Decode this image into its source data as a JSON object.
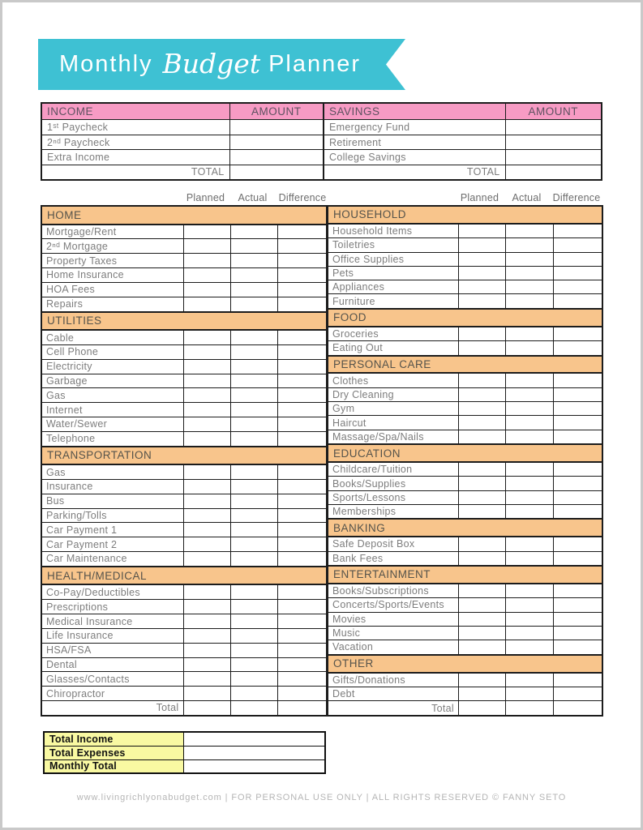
{
  "title": {
    "monthly": "Monthly",
    "budget": "Budget",
    "planner": "Planner"
  },
  "colors": {
    "banner_teal": "#3ec1d3",
    "header_pink": "#f79bc4",
    "section_orange": "#f8c58c",
    "summary_yellow": "#f9f9a2"
  },
  "income_savings": {
    "headers": [
      "INCOME",
      "AMOUNT",
      "SAVINGS",
      "AMOUNT"
    ],
    "income_rows": [
      "1ˢᵗ Paycheck",
      "2ⁿᵈ Paycheck",
      "Extra Income"
    ],
    "savings_rows": [
      "Emergency Fund",
      "Retirement",
      "College Savings"
    ],
    "total_label": "TOTAL"
  },
  "value_columns": {
    "planned": "Planned",
    "actual": "Actual",
    "difference": "Difference"
  },
  "expenses": {
    "left": {
      "total_label": "Total",
      "sections": [
        {
          "header": "HOME",
          "items": [
            "Mortgage/Rent",
            "2ⁿᵈ Mortgage",
            "Property Taxes",
            "Home Insurance",
            "HOA Fees",
            "Repairs"
          ]
        },
        {
          "header": "UTILITIES",
          "items": [
            "Cable",
            "Cell Phone",
            "Electricity",
            "Garbage",
            "Gas",
            "Internet",
            "Water/Sewer",
            "Telephone"
          ]
        },
        {
          "header": "TRANSPORTATION",
          "items": [
            "Gas",
            "Insurance",
            "Bus",
            "Parking/Tolls",
            "Car Payment 1",
            "Car Payment 2",
            "Car Maintenance"
          ]
        },
        {
          "header": "HEALTH/MEDICAL",
          "items": [
            "Co-Pay/Deductibles",
            "Prescriptions",
            "Medical Insurance",
            "Life Insurance",
            "HSA/FSA",
            "Dental",
            "Glasses/Contacts",
            "Chiropractor"
          ]
        }
      ]
    },
    "right": {
      "total_label": "Total",
      "sections": [
        {
          "header": "HOUSEHOLD",
          "items": [
            "Household Items",
            "Toiletries",
            "Office Supplies",
            "Pets",
            "Appliances",
            "Furniture"
          ]
        },
        {
          "header": "FOOD",
          "items": [
            "Groceries",
            "Eating Out"
          ]
        },
        {
          "header": "PERSONAL CARE",
          "items": [
            "Clothes",
            "Dry Cleaning",
            "Gym",
            "Haircut",
            "Massage/Spa/Nails"
          ]
        },
        {
          "header": "EDUCATION",
          "items": [
            "Childcare/Tuition",
            "Books/Supplies",
            "Sports/Lessons",
            "Memberships"
          ]
        },
        {
          "header": "BANKING",
          "items": [
            "Safe Deposit Box",
            "Bank Fees"
          ]
        },
        {
          "header": "ENTERTAINMENT",
          "items": [
            "Books/Subscriptions",
            "Concerts/Sports/Events",
            "Movies",
            "Music",
            "Vacation"
          ]
        },
        {
          "header": "OTHER",
          "items": [
            "Gifts/Donations",
            "Debt"
          ]
        }
      ]
    }
  },
  "summary": {
    "rows": [
      "Total Income",
      "Total Expenses",
      "Monthly Total"
    ]
  },
  "footer": {
    "text": "www.livingrichlyonabudget.com | FOR PERSONAL USE ONLY | ALL RIGHTS RESERVED © FANNY SETO"
  }
}
